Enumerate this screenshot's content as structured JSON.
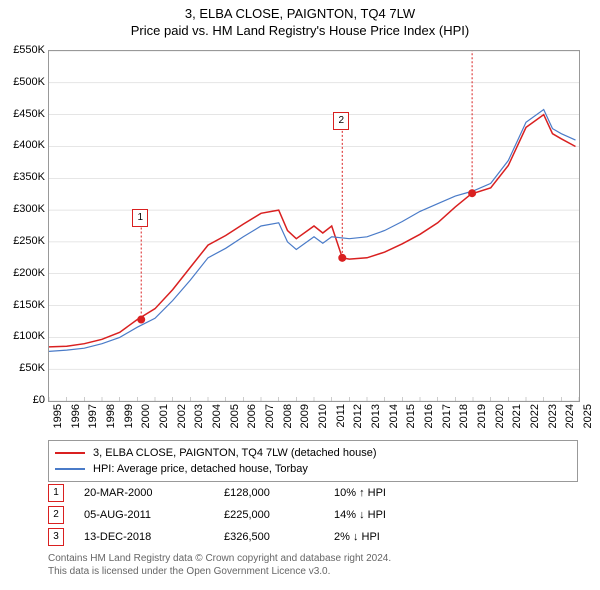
{
  "title": "3, ELBA CLOSE, PAIGNTON, TQ4 7LW",
  "subtitle": "Price paid vs. HM Land Registry's House Price Index (HPI)",
  "chart": {
    "type": "line",
    "background_color": "#ffffff",
    "border_color": "#999999",
    "x_axis": {
      "min": 1995,
      "max": 2025,
      "ticks": [
        1995,
        1996,
        1997,
        1998,
        1999,
        2000,
        2001,
        2002,
        2003,
        2004,
        2005,
        2006,
        2007,
        2008,
        2009,
        2010,
        2011,
        2012,
        2013,
        2014,
        2015,
        2016,
        2017,
        2018,
        2019,
        2020,
        2021,
        2022,
        2023,
        2024,
        2025
      ],
      "label_fontsize": 11,
      "rotation": -90
    },
    "y_axis": {
      "min": 0,
      "max": 550000,
      "tick_step": 50000,
      "tick_labels": [
        "£0",
        "£50K",
        "£100K",
        "£150K",
        "£200K",
        "£250K",
        "£300K",
        "£350K",
        "£400K",
        "£450K",
        "£500K",
        "£550K"
      ],
      "label_fontsize": 11
    },
    "series": [
      {
        "name": "3, ELBA CLOSE, PAIGNTON, TQ4 7LW (detached house)",
        "color": "#d92020",
        "line_width": 1.5,
        "data": [
          [
            1995,
            85000
          ],
          [
            1996,
            86000
          ],
          [
            1997,
            90000
          ],
          [
            1998,
            97000
          ],
          [
            1999,
            108000
          ],
          [
            2000,
            128000
          ],
          [
            2001,
            145000
          ],
          [
            2002,
            175000
          ],
          [
            2003,
            210000
          ],
          [
            2004,
            245000
          ],
          [
            2005,
            260000
          ],
          [
            2006,
            278000
          ],
          [
            2007,
            295000
          ],
          [
            2008,
            300000
          ],
          [
            2008.5,
            268000
          ],
          [
            2009,
            255000
          ],
          [
            2010,
            275000
          ],
          [
            2010.5,
            264000
          ],
          [
            2011,
            275000
          ],
          [
            2011.6,
            225000
          ],
          [
            2012,
            223000
          ],
          [
            2013,
            225000
          ],
          [
            2014,
            234000
          ],
          [
            2015,
            247000
          ],
          [
            2016,
            262000
          ],
          [
            2017,
            280000
          ],
          [
            2018,
            305000
          ],
          [
            2018.95,
            326500
          ],
          [
            2019,
            326000
          ],
          [
            2020,
            335000
          ],
          [
            2021,
            370000
          ],
          [
            2022,
            430000
          ],
          [
            2023,
            450000
          ],
          [
            2023.5,
            420000
          ],
          [
            2024,
            412000
          ],
          [
            2024.8,
            400000
          ]
        ]
      },
      {
        "name": "HPI: Average price, detached house, Torbay",
        "color": "#4a7bc8",
        "line_width": 1.2,
        "data": [
          [
            1995,
            78000
          ],
          [
            1996,
            80000
          ],
          [
            1997,
            83000
          ],
          [
            1998,
            90000
          ],
          [
            1999,
            100000
          ],
          [
            2000,
            116000
          ],
          [
            2001,
            130000
          ],
          [
            2002,
            158000
          ],
          [
            2003,
            190000
          ],
          [
            2004,
            225000
          ],
          [
            2005,
            240000
          ],
          [
            2006,
            258000
          ],
          [
            2007,
            275000
          ],
          [
            2008,
            280000
          ],
          [
            2008.5,
            250000
          ],
          [
            2009,
            238000
          ],
          [
            2010,
            258000
          ],
          [
            2010.5,
            248000
          ],
          [
            2011,
            258000
          ],
          [
            2012,
            255000
          ],
          [
            2013,
            258000
          ],
          [
            2014,
            268000
          ],
          [
            2015,
            282000
          ],
          [
            2016,
            298000
          ],
          [
            2017,
            310000
          ],
          [
            2018,
            322000
          ],
          [
            2019,
            330000
          ],
          [
            2020,
            342000
          ],
          [
            2021,
            378000
          ],
          [
            2022,
            438000
          ],
          [
            2023,
            458000
          ],
          [
            2023.5,
            428000
          ],
          [
            2024,
            420000
          ],
          [
            2024.8,
            410000
          ]
        ]
      }
    ],
    "markers": [
      {
        "n": "1",
        "x": 2000.22,
        "y": 128000,
        "label_y_offset": -110,
        "color": "#d92020"
      },
      {
        "n": "2",
        "x": 2011.6,
        "y": 225000,
        "label_y_offset": -145,
        "color": "#d92020"
      },
      {
        "n": "3",
        "x": 2018.95,
        "y": 326500,
        "label_y_offset": -210,
        "color": "#d92020"
      }
    ],
    "grid_color": "#cccccc"
  },
  "legend": {
    "items": [
      {
        "color": "#d92020",
        "label": "3, ELBA CLOSE, PAIGNTON, TQ4 7LW (detached house)"
      },
      {
        "color": "#4a7bc8",
        "label": "HPI: Average price, detached house, Torbay"
      }
    ]
  },
  "transactions": [
    {
      "n": "1",
      "date": "20-MAR-2000",
      "price": "£128,000",
      "hpi": "10% ↑ HPI",
      "color": "#d92020"
    },
    {
      "n": "2",
      "date": "05-AUG-2011",
      "price": "£225,000",
      "hpi": "14% ↓ HPI",
      "color": "#d92020"
    },
    {
      "n": "3",
      "date": "13-DEC-2018",
      "price": "£326,500",
      "hpi": "2% ↓ HPI",
      "color": "#d92020"
    }
  ],
  "footer": {
    "line1": "Contains HM Land Registry data © Crown copyright and database right 2024.",
    "line2": "This data is licensed under the Open Government Licence v3.0."
  }
}
